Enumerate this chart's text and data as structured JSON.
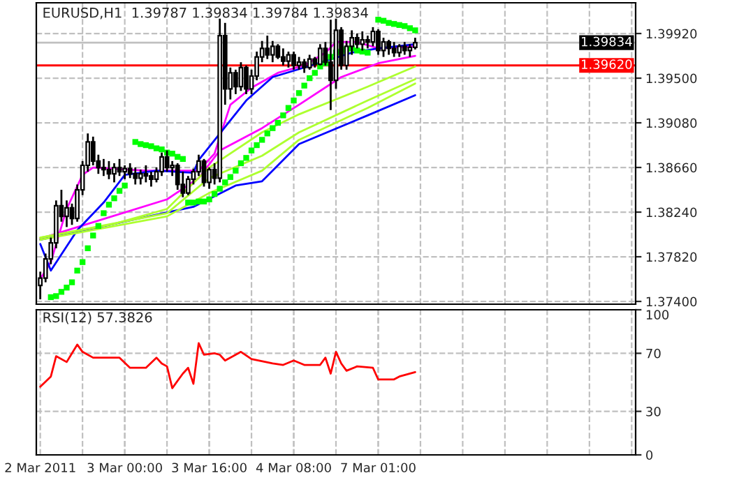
{
  "chart_data": [
    {
      "type": "candlestick",
      "title": "EURUSD,H1  1.39787 1.39834 1.39784 1.39834",
      "categories": [
        null,
        null,
        null,
        null,
        null,
        null,
        null,
        null,
        null,
        null,
        null,
        null,
        null,
        null,
        null,
        null,
        null,
        null,
        null,
        null,
        null,
        null,
        null,
        null,
        null,
        null,
        null,
        null,
        null,
        null,
        null,
        null,
        null,
        null,
        null,
        null,
        null,
        null,
        null,
        null,
        null,
        null,
        null,
        null,
        null,
        null,
        null,
        null,
        null,
        null,
        null,
        null,
        null,
        null,
        null,
        null,
        null,
        null,
        null,
        null,
        null,
        null,
        null,
        null,
        null,
        null,
        null,
        null,
        null,
        null,
        null,
        null,
        null,
        null,
        null,
        null,
        null,
        null,
        null,
        null,
        null,
        null,
        null,
        null,
        null,
        null,
        null,
        null,
        null,
        null,
        null,
        null,
        null,
        null,
        null,
        null,
        null,
        null,
        null,
        null,
        null,
        null,
        null,
        null,
        null,
        null,
        null,
        null,
        null,
        null,
        null,
        null,
        null
      ],
      "ohlc": [
        [
          1.3755,
          1.3768,
          1.3742,
          1.3762
        ],
        [
          1.3762,
          1.3785,
          1.3758,
          1.378
        ],
        [
          1.378,
          1.38,
          1.3775,
          1.3795
        ],
        [
          1.3795,
          1.3835,
          1.379,
          1.383
        ],
        [
          1.383,
          1.3845,
          1.3815,
          1.382
        ],
        [
          1.382,
          1.3835,
          1.381,
          1.3828
        ],
        [
          1.3828,
          1.3832,
          1.3812,
          1.3818
        ],
        [
          1.3818,
          1.385,
          1.3815,
          1.3845
        ],
        [
          1.3845,
          1.3872,
          1.384,
          1.3868
        ],
        [
          1.3868,
          1.3898,
          1.3862,
          1.389
        ],
        [
          1.389,
          1.3895,
          1.3868,
          1.3872
        ],
        [
          1.3872,
          1.3878,
          1.386,
          1.3866
        ],
        [
          1.3866,
          1.3874,
          1.3858,
          1.3864
        ],
        [
          1.3864,
          1.3872,
          1.3855,
          1.386
        ],
        [
          1.386,
          1.387,
          1.3852,
          1.3866
        ],
        [
          1.3866,
          1.3874,
          1.3858,
          1.3862
        ],
        [
          1.3862,
          1.3868,
          1.3855,
          1.3865
        ],
        [
          1.3865,
          1.387,
          1.3856,
          1.386
        ],
        [
          1.386,
          1.3866,
          1.385,
          1.3856
        ],
        [
          1.3856,
          1.3864,
          1.385,
          1.386
        ],
        [
          1.386,
          1.3868,
          1.3852,
          1.3858
        ],
        [
          1.3858,
          1.3862,
          1.3848,
          1.3855
        ],
        [
          1.3855,
          1.3866,
          1.3852,
          1.3862
        ],
        [
          1.3862,
          1.388,
          1.3858,
          1.3876
        ],
        [
          1.3876,
          1.3882,
          1.3862,
          1.3866
        ],
        [
          1.3866,
          1.3872,
          1.3858,
          1.3868
        ],
        [
          1.3868,
          1.387,
          1.3845,
          1.385
        ],
        [
          1.385,
          1.3862,
          1.3838,
          1.3842
        ],
        [
          1.3842,
          1.3858,
          1.384,
          1.3855
        ],
        [
          1.3855,
          1.3865,
          1.385,
          1.3862
        ],
        [
          1.3862,
          1.3878,
          1.3858,
          1.3872
        ],
        [
          1.3872,
          1.3874,
          1.3848,
          1.3852
        ],
        [
          1.3852,
          1.3866,
          1.3846,
          1.3864
        ],
        [
          1.3864,
          1.387,
          1.385,
          1.3856
        ],
        [
          1.3856,
          1.4006,
          1.3852,
          1.399
        ],
        [
          1.399,
          1.4002,
          1.3925,
          1.394
        ],
        [
          1.394,
          1.396,
          1.393,
          1.3955
        ],
        [
          1.3955,
          1.3958,
          1.3935,
          1.3942
        ],
        [
          1.3942,
          1.3965,
          1.3938,
          1.396
        ],
        [
          1.396,
          1.3962,
          1.3935,
          1.394
        ],
        [
          1.394,
          1.3958,
          1.3935,
          1.3952
        ],
        [
          1.3952,
          1.3975,
          1.3948,
          1.397
        ],
        [
          1.397,
          1.3985,
          1.3965,
          1.3978
        ],
        [
          1.3978,
          1.399,
          1.3968,
          1.3972
        ],
        [
          1.3972,
          1.3985,
          1.3965,
          1.398
        ],
        [
          1.398,
          1.3982,
          1.3968,
          1.397
        ],
        [
          1.397,
          1.3978,
          1.3962,
          1.3966
        ],
        [
          1.3966,
          1.3975,
          1.396,
          1.3972
        ],
        [
          1.3972,
          1.3975,
          1.3958,
          1.3962
        ],
        [
          1.3962,
          1.397,
          1.3958,
          1.3965
        ],
        [
          1.3965,
          1.3968,
          1.3955,
          1.396
        ],
        [
          1.396,
          1.3972,
          1.3958,
          1.3968
        ],
        [
          1.3968,
          1.397,
          1.396,
          1.3963
        ],
        [
          1.3963,
          1.3982,
          1.3962,
          1.3978
        ],
        [
          1.3978,
          1.3984,
          1.3962,
          1.3965
        ],
        [
          1.3965,
          1.4005,
          1.392,
          1.3948
        ],
        [
          1.3948,
          1.4006,
          1.394,
          1.3995
        ],
        [
          1.3995,
          1.3998,
          1.3958,
          1.3962
        ],
        [
          1.3962,
          1.3985,
          1.3958,
          1.398
        ],
        [
          1.398,
          1.3995,
          1.3972,
          1.3988
        ],
        [
          1.3988,
          1.3992,
          1.3978,
          1.3982
        ],
        [
          1.3982,
          1.3994,
          1.3976,
          1.3986
        ],
        [
          1.3986,
          1.399,
          1.3978,
          1.3984
        ],
        [
          1.3984,
          1.3998,
          1.398,
          1.3994
        ],
        [
          1.3994,
          1.3996,
          1.3972,
          1.3976
        ],
        [
          1.3976,
          1.3988,
          1.397,
          1.3984
        ],
        [
          1.3984,
          1.3986,
          1.3972,
          1.3978
        ],
        [
          1.3978,
          1.3984,
          1.397,
          1.3974
        ],
        [
          1.3974,
          1.3982,
          1.397,
          1.398
        ],
        [
          1.398,
          1.3984,
          1.3972,
          1.3976
        ],
        [
          1.3976,
          1.3982,
          1.397,
          1.3979
        ],
        [
          1.3979,
          1.3988,
          1.3977,
          1.39834
        ],
        null,
        null,
        null,
        null,
        null,
        null,
        null,
        null,
        null,
        null,
        null,
        null,
        null,
        null,
        null,
        null,
        null,
        null,
        null,
        null,
        null,
        null,
        null,
        null,
        null,
        null,
        null,
        null,
        null,
        null,
        null,
        null,
        null,
        null,
        null,
        null,
        null,
        null,
        null,
        null,
        null
      ],
      "series": [
        {
          "type": "line",
          "color": "#ff00ff",
          "values": [
            1.3761,
            null,
            1.3777,
            null,
            null,
            1.3827,
            null,
            null,
            1.3859,
            null,
            1.3866,
            null,
            null,
            null,
            null,
            null,
            null,
            null,
            null,
            null,
            1.3863,
            null,
            null,
            null,
            null,
            null,
            null,
            null,
            null,
            null,
            1.3863,
            null,
            null,
            1.3879,
            null,
            null,
            1.3925,
            null,
            null,
            null,
            1.3941,
            null,
            null,
            null,
            null,
            1.3955,
            null,
            null,
            null,
            null,
            1.3962,
            null,
            null,
            null,
            1.3974,
            null,
            1.3984,
            null,
            null,
            null,
            1.3984,
            null,
            null,
            null,
            1.3978,
            null,
            null,
            null,
            null,
            null,
            null,
            1.398,
            null,
            null,
            null,
            null,
            null,
            null,
            null,
            null,
            null,
            null,
            null,
            null,
            null,
            null,
            null,
            null,
            null,
            null,
            null,
            null,
            null,
            null,
            null,
            null,
            null,
            null,
            null,
            null,
            null,
            null,
            null,
            null,
            null,
            null,
            null,
            null,
            null,
            null,
            null,
            null,
            null
          ]
        },
        {
          "type": "line",
          "color": "#ff00ff",
          "values": [
            1.3799,
            null,
            null,
            null,
            null,
            null,
            null,
            null,
            null,
            1.3813,
            null,
            null,
            null,
            null,
            null,
            null,
            null,
            null,
            null,
            null,
            null,
            null,
            null,
            null,
            1.3836,
            null,
            null,
            null,
            null,
            null,
            1.3856,
            null,
            null,
            null,
            1.3882,
            null,
            null,
            null,
            null,
            null,
            null,
            null,
            1.3903,
            null,
            null,
            null,
            null,
            null,
            null,
            1.3925,
            null,
            null,
            null,
            null,
            null,
            null,
            null,
            1.3951,
            null,
            null,
            null,
            null,
            null,
            null,
            1.3964,
            null,
            null,
            null,
            null,
            null,
            null,
            1.3971,
            null,
            null,
            null,
            null,
            null,
            null,
            null,
            null,
            null,
            null,
            null,
            null,
            null,
            null,
            null,
            null,
            null,
            null,
            null,
            null,
            null,
            null,
            null,
            null,
            null,
            null,
            null,
            null,
            null,
            null,
            null,
            null,
            null,
            null,
            null,
            null,
            null,
            null,
            null,
            null,
            null
          ]
        },
        {
          "type": "line",
          "color": "#0000ff",
          "values": [
            1.3794,
            null,
            1.3769,
            null,
            null,
            null,
            null,
            1.3807,
            null,
            null,
            null,
            null,
            1.3833,
            null,
            null,
            null,
            1.3859,
            null,
            null,
            null,
            null,
            null,
            1.3863,
            null,
            null,
            null,
            null,
            null,
            null,
            1.3861,
            1.3873,
            null,
            null,
            null,
            null,
            null,
            null,
            null,
            null,
            1.3929,
            null,
            null,
            null,
            null,
            1.3951,
            null,
            null,
            null,
            null,
            null,
            null,
            null,
            1.3963,
            null,
            null,
            null,
            null,
            null,
            null,
            1.3974,
            null,
            null,
            null,
            null,
            1.3978,
            null,
            null,
            null,
            null,
            null,
            null,
            1.3982,
            null,
            null,
            null,
            null,
            null,
            null,
            null,
            null,
            null,
            null,
            null,
            null,
            null,
            null,
            null,
            null,
            null,
            null,
            null,
            null,
            null,
            null,
            null,
            null,
            null,
            null,
            null,
            null,
            null,
            null,
            null,
            null,
            null,
            null,
            null,
            null,
            null,
            null,
            null,
            null,
            null
          ]
        },
        {
          "type": "line",
          "color": "#0000ff",
          "values": [
            1.3798,
            null,
            null,
            null,
            null,
            null,
            null,
            null,
            null,
            null,
            null,
            null,
            null,
            null,
            null,
            null,
            null,
            null,
            null,
            null,
            null,
            null,
            null,
            null,
            null,
            null,
            null,
            null,
            null,
            1.3829,
            null,
            null,
            null,
            null,
            null,
            null,
            null,
            1.3849,
            null,
            null,
            null,
            null,
            1.3853,
            null,
            null,
            null,
            null,
            null,
            null,
            1.3888,
            null,
            null,
            null,
            null,
            null,
            null,
            null,
            null,
            null,
            null,
            null,
            null,
            1.3915,
            null,
            null,
            null,
            null,
            null,
            null,
            null,
            null,
            1.3934,
            null,
            null,
            null,
            null,
            null,
            null,
            null,
            null,
            null,
            null,
            null,
            null,
            null,
            null,
            null,
            null,
            null,
            null,
            null,
            null,
            null,
            null,
            null,
            null,
            null,
            null,
            null,
            null,
            null,
            null,
            null,
            null,
            null,
            null,
            null,
            null,
            null,
            null,
            null,
            null,
            null
          ]
        },
        {
          "type": "line",
          "color": "#adff2f",
          "values": [
            1.38,
            null,
            null,
            null,
            null,
            null,
            null,
            null,
            null,
            null,
            null,
            null,
            null,
            null,
            1.3813,
            null,
            null,
            null,
            null,
            null,
            null,
            null,
            null,
            null,
            1.3827,
            null,
            null,
            null,
            null,
            null,
            null,
            null,
            1.3866,
            null,
            null,
            null,
            null,
            null,
            null,
            null,
            null,
            null,
            1.3899,
            null,
            null,
            null,
            null,
            null,
            null,
            1.3916,
            null,
            null,
            null,
            null,
            null,
            null,
            null,
            null,
            null,
            null,
            null,
            null,
            1.3942,
            null,
            null,
            null,
            null,
            null,
            null,
            null,
            null,
            1.3961,
            null,
            null,
            null,
            null,
            null,
            null,
            null,
            null,
            null,
            null,
            null,
            null,
            null,
            null,
            null,
            null,
            null,
            null,
            null,
            null,
            null,
            null,
            null,
            null,
            null,
            null,
            null,
            null,
            null,
            null,
            null,
            null,
            null,
            null,
            null,
            null,
            null,
            null,
            null,
            null,
            null
          ]
        },
        {
          "type": "line",
          "color": "#adff2f",
          "values": [
            1.38,
            null,
            null,
            null,
            null,
            null,
            null,
            null,
            null,
            null,
            null,
            null,
            null,
            null,
            null,
            null,
            null,
            null,
            null,
            null,
            null,
            null,
            null,
            null,
            1.3823,
            null,
            null,
            null,
            null,
            null,
            null,
            null,
            1.3856,
            null,
            null,
            null,
            null,
            null,
            null,
            null,
            null,
            null,
            1.3877,
            null,
            null,
            null,
            null,
            null,
            null,
            1.3899,
            null,
            null,
            null,
            null,
            null,
            null,
            null,
            null,
            null,
            null,
            null,
            null,
            1.3929,
            null,
            null,
            null,
            null,
            null,
            null,
            null,
            null,
            1.3949,
            null,
            null,
            null,
            null,
            null,
            null,
            null,
            null,
            null,
            null,
            null,
            null,
            null,
            null,
            null,
            null,
            null,
            null,
            null,
            null,
            null,
            null,
            null,
            null,
            null,
            null,
            null,
            null,
            null,
            null,
            null,
            null,
            null,
            null,
            null,
            null,
            null,
            null,
            null,
            null,
            null
          ]
        },
        {
          "type": "line",
          "color": "#adff2f",
          "values": [
            1.3798,
            null,
            null,
            null,
            null,
            null,
            null,
            null,
            null,
            null,
            null,
            null,
            null,
            null,
            null,
            null,
            null,
            null,
            null,
            null,
            null,
            null,
            null,
            null,
            1.382,
            null,
            null,
            null,
            null,
            null,
            null,
            null,
            1.3842,
            null,
            null,
            null,
            null,
            null,
            null,
            null,
            null,
            null,
            1.3863,
            null,
            null,
            null,
            null,
            null,
            null,
            1.3892,
            null,
            null,
            null,
            null,
            null,
            null,
            null,
            null,
            null,
            null,
            null,
            null,
            1.3922,
            null,
            null,
            null,
            null,
            null,
            null,
            null,
            null,
            1.3945,
            null,
            null,
            null,
            null,
            null,
            null,
            null,
            null,
            null,
            null,
            null,
            null,
            null,
            null,
            null,
            null,
            null,
            null,
            null,
            null,
            null,
            null,
            null,
            null,
            null,
            null,
            null,
            null,
            null,
            null,
            null,
            null,
            null,
            null,
            null,
            null,
            null,
            null,
            null,
            null,
            null
          ]
        },
        {
          "type": "scatter",
          "color": "#00ff00",
          "marker": "square",
          "values": [
            null,
            null,
            1.3744,
            1.3745,
            1.3749,
            1.3753,
            1.3758,
            1.3769,
            1.3777,
            1.379,
            1.3802,
            1.3811,
            1.3823,
            1.3831,
            1.3837,
            1.3844,
            1.3849,
            null,
            1.389,
            1.3888,
            1.3887,
            1.3886,
            1.3884,
            1.3883,
            1.388,
            1.3879,
            1.3876,
            1.3874,
            1.3833,
            1.3833,
            1.3834,
            1.3834,
            1.3836,
            1.3841,
            1.3846,
            1.3852,
            1.3857,
            1.3863,
            1.387,
            1.3875,
            1.3882,
            1.3887,
            1.3892,
            1.3898,
            1.3903,
            1.3908,
            1.3915,
            1.3922,
            1.3929,
            1.3936,
            1.3943,
            1.395,
            1.3955,
            1.3961,
            1.3964,
            1.397,
            1.3974,
            1.3975,
            1.3977,
            1.3978,
            1.3976,
            1.3975,
            1.3974,
            null,
            1.4005,
            1.4004,
            1.4002,
            1.4001,
            1.4,
            1.3999,
            1.3997,
            1.3995,
            null,
            null,
            null,
            null,
            null,
            null,
            null,
            null,
            null,
            null,
            null,
            null,
            null,
            null,
            null,
            null,
            null,
            null,
            null,
            null,
            null,
            null,
            null,
            null,
            null,
            null,
            null,
            null,
            null,
            null,
            null,
            null,
            null,
            null,
            null,
            null,
            null,
            null,
            null,
            null,
            null
          ]
        }
      ],
      "ref_lines": [
        {
          "axis": "y",
          "value": 1.3962,
          "label": "1.39620",
          "color": "#ff0000"
        },
        {
          "axis": "y",
          "value": 1.39834,
          "label": "1.39834",
          "color": "#c0c0c0"
        }
      ],
      "ylim": [
        1.37374,
        1.40209
      ],
      "yticks": [
        {
          "value": 1.374,
          "label": "1.37400"
        },
        {
          "value": 1.3782,
          "label": "1.37820"
        },
        {
          "value": 1.3824,
          "label": "1.38240"
        },
        {
          "value": 1.3866,
          "label": "1.38660"
        },
        {
          "value": 1.3908,
          "label": "1.39080"
        },
        {
          "value": 1.395,
          "label": "1.39500"
        },
        {
          "value": 1.3992,
          "label": "1.39920"
        }
      ],
      "tick_labels": "y",
      "grid": true,
      "legend": false
    },
    {
      "type": "line",
      "title": "RSI(12) 57.3826",
      "categories": [
        "2 Mar 2011",
        null,
        null,
        null,
        null,
        null,
        null,
        null,
        null,
        null,
        null,
        null,
        null,
        null,
        null,
        null,
        "3 Mar 00:00",
        null,
        null,
        null,
        null,
        null,
        null,
        null,
        null,
        null,
        null,
        null,
        null,
        null,
        null,
        null,
        "3 Mar 16:00",
        null,
        null,
        null,
        null,
        null,
        null,
        null,
        null,
        null,
        null,
        null,
        null,
        null,
        null,
        null,
        "4 Mar 08:00",
        null,
        null,
        null,
        null,
        null,
        null,
        null,
        null,
        null,
        null,
        null,
        null,
        null,
        null,
        null,
        "7 Mar 01:00",
        null,
        null,
        null,
        null,
        null,
        null,
        null,
        null,
        null,
        null,
        null,
        null,
        null,
        null,
        null,
        null,
        null,
        null,
        null,
        null,
        null,
        null,
        null,
        null,
        null,
        null,
        null,
        null,
        null,
        null,
        null,
        null,
        null,
        null,
        null,
        null,
        null,
        null,
        null,
        null,
        null,
        null,
        null,
        null,
        null,
        null,
        null,
        null
      ],
      "series": [
        {
          "type": "line",
          "color": "#ff0000",
          "values": [
            47,
            null,
            54,
            68,
            null,
            64,
            null,
            76,
            71,
            null,
            67,
            null,
            null,
            67,
            null,
            67,
            null,
            60,
            null,
            null,
            60,
            null,
            67,
            63,
            61,
            46,
            null,
            56,
            60,
            49,
            77,
            69,
            null,
            70,
            69,
            65,
            null,
            null,
            71,
            null,
            66,
            null,
            null,
            null,
            63,
            null,
            62,
            null,
            65,
            null,
            62,
            null,
            null,
            62,
            67,
            56,
            71,
            63,
            58,
            null,
            61,
            null,
            null,
            60,
            52,
            null,
            null,
            52,
            54,
            null,
            null,
            57,
            null,
            null,
            null,
            null,
            null,
            null,
            null,
            null,
            null,
            null,
            null,
            null,
            null,
            null,
            null,
            null,
            null,
            null,
            null,
            null,
            null,
            null,
            null,
            null,
            null,
            null,
            null,
            null,
            null,
            null,
            null,
            null,
            null,
            null,
            null,
            null,
            null,
            null,
            null,
            null,
            null
          ]
        }
      ],
      "ylim": [
        0,
        100
      ],
      "yticks": [
        0,
        30,
        70,
        100
      ],
      "grid": true,
      "legend": false
    }
  ]
}
